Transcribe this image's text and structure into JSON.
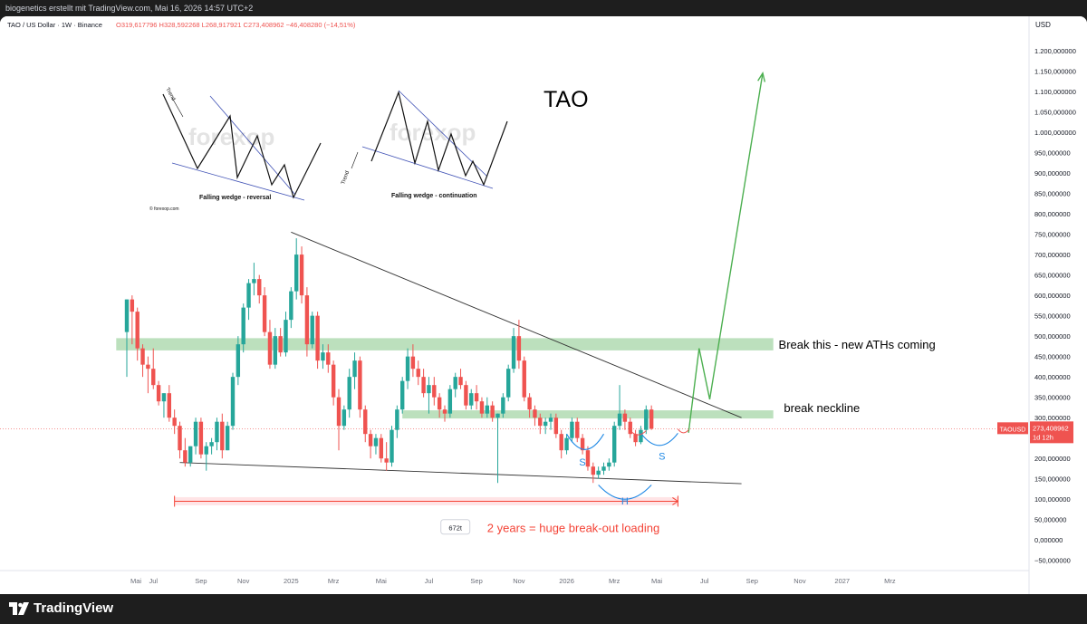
{
  "header": {
    "attribution": "biogenetics erstellt mit TradingView.com, Mai 16, 2026 14:57 UTC+2"
  },
  "legend": {
    "symbol": "TAO / US Dollar · 1W · Binance",
    "ohlc": "O319,617796  H328,592268  L268,917921  C273,408962  −46,408280 (−14,51%)"
  },
  "chart_data": {
    "type": "candlestick",
    "title": "TAO",
    "currency": "USD",
    "ylim": [
      -75,
      1240
    ],
    "y_ticks": [
      -50,
      0,
      50,
      100,
      150,
      200,
      250,
      300,
      350,
      400,
      450,
      500,
      550,
      600,
      650,
      700,
      750,
      800,
      850,
      900,
      950,
      1000,
      1050,
      1100,
      1150,
      1200
    ],
    "y_tick_labels": [
      "−50,000000",
      "0,000000",
      "50,000000",
      "100,000000",
      "150,000000",
      "200,000000",
      "250,000000",
      "300,000000",
      "350,000000",
      "400,000000",
      "450,000000",
      "500,000000",
      "550,000000",
      "600,000000",
      "650,000000",
      "700,000000",
      "750,000000",
      "800,000000",
      "850,000000",
      "900,000000",
      "950,000000",
      "1.000,000000",
      "1.050,000000",
      "1.100,000000",
      "1.150,000000",
      "1.200,000000"
    ],
    "x_ticks": [
      {
        "label": "Mai",
        "i": -4
      },
      {
        "label": "Jul",
        "i": 5
      },
      {
        "label": "Sep",
        "i": 14
      },
      {
        "label": "Nov",
        "i": 22
      },
      {
        "label": "2025",
        "i": 31
      },
      {
        "label": "Mrz",
        "i": 39
      },
      {
        "label": "Mai",
        "i": 48
      },
      {
        "label": "Jul",
        "i": 57
      },
      {
        "label": "Sep",
        "i": 66
      },
      {
        "label": "Nov",
        "i": 74
      },
      {
        "label": "2026",
        "i": 83
      },
      {
        "label": "Mrz",
        "i": 92
      },
      {
        "label": "Mai",
        "i": 100
      },
      {
        "label": "Jul",
        "i": 109
      },
      {
        "label": "Sep",
        "i": 118
      },
      {
        "label": "Nov",
        "i": 127
      },
      {
        "label": "2027",
        "i": 135
      },
      {
        "label": "Mrz",
        "i": 144
      }
    ],
    "candles": [
      [
        510,
        590,
        400,
        590
      ],
      [
        590,
        600,
        480,
        560
      ],
      [
        560,
        570,
        440,
        470
      ],
      [
        470,
        480,
        400,
        430
      ],
      [
        430,
        450,
        360,
        420
      ],
      [
        420,
        470,
        370,
        380
      ],
      [
        380,
        390,
        330,
        340
      ],
      [
        340,
        360,
        300,
        360
      ],
      [
        360,
        380,
        290,
        300
      ],
      [
        300,
        320,
        260,
        280
      ],
      [
        280,
        290,
        200,
        220
      ],
      [
        220,
        250,
        180,
        190
      ],
      [
        190,
        230,
        180,
        230
      ],
      [
        230,
        300,
        210,
        290
      ],
      [
        290,
        300,
        200,
        210
      ],
      [
        210,
        240,
        170,
        230
      ],
      [
        230,
        250,
        210,
        240
      ],
      [
        240,
        300,
        220,
        290
      ],
      [
        290,
        310,
        200,
        220
      ],
      [
        220,
        290,
        220,
        280
      ],
      [
        280,
        410,
        270,
        400
      ],
      [
        400,
        500,
        380,
        480
      ],
      [
        480,
        580,
        460,
        570
      ],
      [
        570,
        640,
        540,
        630
      ],
      [
        630,
        680,
        600,
        640
      ],
      [
        640,
        650,
        580,
        600
      ],
      [
        600,
        620,
        500,
        510
      ],
      [
        510,
        540,
        420,
        430
      ],
      [
        430,
        520,
        420,
        500
      ],
      [
        500,
        520,
        450,
        460
      ],
      [
        460,
        560,
        450,
        540
      ],
      [
        540,
        620,
        520,
        610
      ],
      [
        610,
        740,
        590,
        700
      ],
      [
        700,
        720,
        580,
        600
      ],
      [
        600,
        620,
        450,
        480
      ],
      [
        480,
        560,
        470,
        550
      ],
      [
        550,
        560,
        420,
        440
      ],
      [
        440,
        480,
        420,
        460
      ],
      [
        460,
        480,
        410,
        430
      ],
      [
        430,
        440,
        330,
        350
      ],
      [
        350,
        370,
        220,
        280
      ],
      [
        280,
        330,
        270,
        320
      ],
      [
        320,
        420,
        300,
        400
      ],
      [
        400,
        460,
        370,
        440
      ],
      [
        440,
        450,
        300,
        320
      ],
      [
        320,
        330,
        240,
        260
      ],
      [
        260,
        270,
        200,
        230
      ],
      [
        230,
        260,
        210,
        250
      ],
      [
        250,
        260,
        190,
        200
      ],
      [
        200,
        240,
        170,
        190
      ],
      [
        190,
        280,
        180,
        270
      ],
      [
        270,
        330,
        250,
        320
      ],
      [
        320,
        400,
        310,
        390
      ],
      [
        390,
        470,
        370,
        450
      ],
      [
        450,
        480,
        400,
        420
      ],
      [
        420,
        440,
        380,
        400
      ],
      [
        400,
        420,
        350,
        360
      ],
      [
        360,
        400,
        310,
        380
      ],
      [
        380,
        400,
        330,
        350
      ],
      [
        350,
        360,
        300,
        320
      ],
      [
        320,
        330,
        290,
        310
      ],
      [
        310,
        380,
        300,
        370
      ],
      [
        370,
        410,
        350,
        400
      ],
      [
        400,
        420,
        370,
        380
      ],
      [
        380,
        390,
        320,
        330
      ],
      [
        330,
        370,
        320,
        360
      ],
      [
        360,
        380,
        320,
        340
      ],
      [
        340,
        350,
        300,
        310
      ],
      [
        310,
        350,
        300,
        330
      ],
      [
        330,
        340,
        290,
        300
      ],
      [
        300,
        310,
        140,
        310
      ],
      [
        310,
        360,
        300,
        350
      ],
      [
        350,
        430,
        340,
        420
      ],
      [
        420,
        520,
        410,
        500
      ],
      [
        500,
        540,
        420,
        440
      ],
      [
        440,
        450,
        340,
        350
      ],
      [
        350,
        360,
        300,
        320
      ],
      [
        320,
        330,
        280,
        300
      ],
      [
        300,
        310,
        260,
        280
      ],
      [
        280,
        300,
        260,
        290
      ],
      [
        290,
        310,
        270,
        300
      ],
      [
        300,
        310,
        250,
        260
      ],
      [
        260,
        270,
        200,
        220
      ],
      [
        220,
        260,
        210,
        250
      ],
      [
        250,
        300,
        240,
        290
      ],
      [
        290,
        300,
        240,
        250
      ],
      [
        250,
        260,
        210,
        220
      ],
      [
        220,
        230,
        170,
        180
      ],
      [
        180,
        190,
        140,
        160
      ],
      [
        160,
        180,
        150,
        170
      ],
      [
        170,
        190,
        160,
        180
      ],
      [
        180,
        200,
        170,
        190
      ],
      [
        190,
        290,
        180,
        280
      ],
      [
        280,
        380,
        270,
        310
      ],
      [
        310,
        320,
        270,
        290
      ],
      [
        290,
        300,
        250,
        260
      ],
      [
        260,
        270,
        230,
        240
      ],
      [
        240,
        280,
        235,
        270
      ],
      [
        270,
        330,
        260,
        320
      ],
      [
        320,
        330,
        270,
        273
      ]
    ],
    "lines": {
      "upper_trendline": [
        {
          "i": 31,
          "y": 755
        },
        {
          "i": 116,
          "y": 300
        }
      ],
      "lower_trendline": [
        {
          "i": 10,
          "y": 190
        },
        {
          "i": 116,
          "y": 138
        }
      ],
      "projection": [
        {
          "i": 106,
          "y": 263
        },
        {
          "i": 108,
          "y": 470
        },
        {
          "i": 110,
          "y": 345
        },
        {
          "i": 120,
          "y": 1145
        }
      ]
    },
    "zones": [
      {
        "name": "resistance",
        "i0": -2,
        "i1": 122,
        "y0": 465,
        "y1": 495
      },
      {
        "name": "neckline",
        "i0": 52,
        "i1": 122,
        "y0": 298,
        "y1": 318
      }
    ],
    "range_bar": {
      "i0": 9,
      "i1": 104,
      "y0": 85,
      "y1": 105,
      "arrow_y": 95
    },
    "bars_badge": {
      "label": "672t",
      "i": 62,
      "y": 30
    },
    "pattern_labels": [
      {
        "text": "S",
        "i": 86,
        "y": 200
      },
      {
        "text": "H",
        "i": 94,
        "y": 105
      },
      {
        "text": "S",
        "i": 101,
        "y": 215
      }
    ],
    "annotations": [
      {
        "text": "Break this - new ATHs coming",
        "i": 123,
        "y": 480
      },
      {
        "text": "break neckline",
        "i": 124,
        "y": 325
      },
      {
        "text": "2 years = huge break-out loading",
        "i": 68,
        "y": 30
      }
    ],
    "price_tag": {
      "symbol": "TAOUSD",
      "value": "273,408962",
      "countdown": "1d 12h",
      "y": 273
    },
    "inset_left": {
      "caption": "Falling wedge - reversal",
      "trend": "Trend",
      "watermark": "forexop",
      "credit": "© forexop.com"
    },
    "inset_right": {
      "caption": "Falling wedge - continuation",
      "trend": "Trend",
      "watermark": "forexop"
    }
  },
  "colors": {
    "up": "#26a69a",
    "down": "#ef5350",
    "zone": "#a5d6a7",
    "projection": "#4caf50",
    "range": "#f44336",
    "pattern_curve": "#1e88e5",
    "trendline": "#333333"
  },
  "footer": {
    "brand": "TradingView"
  }
}
